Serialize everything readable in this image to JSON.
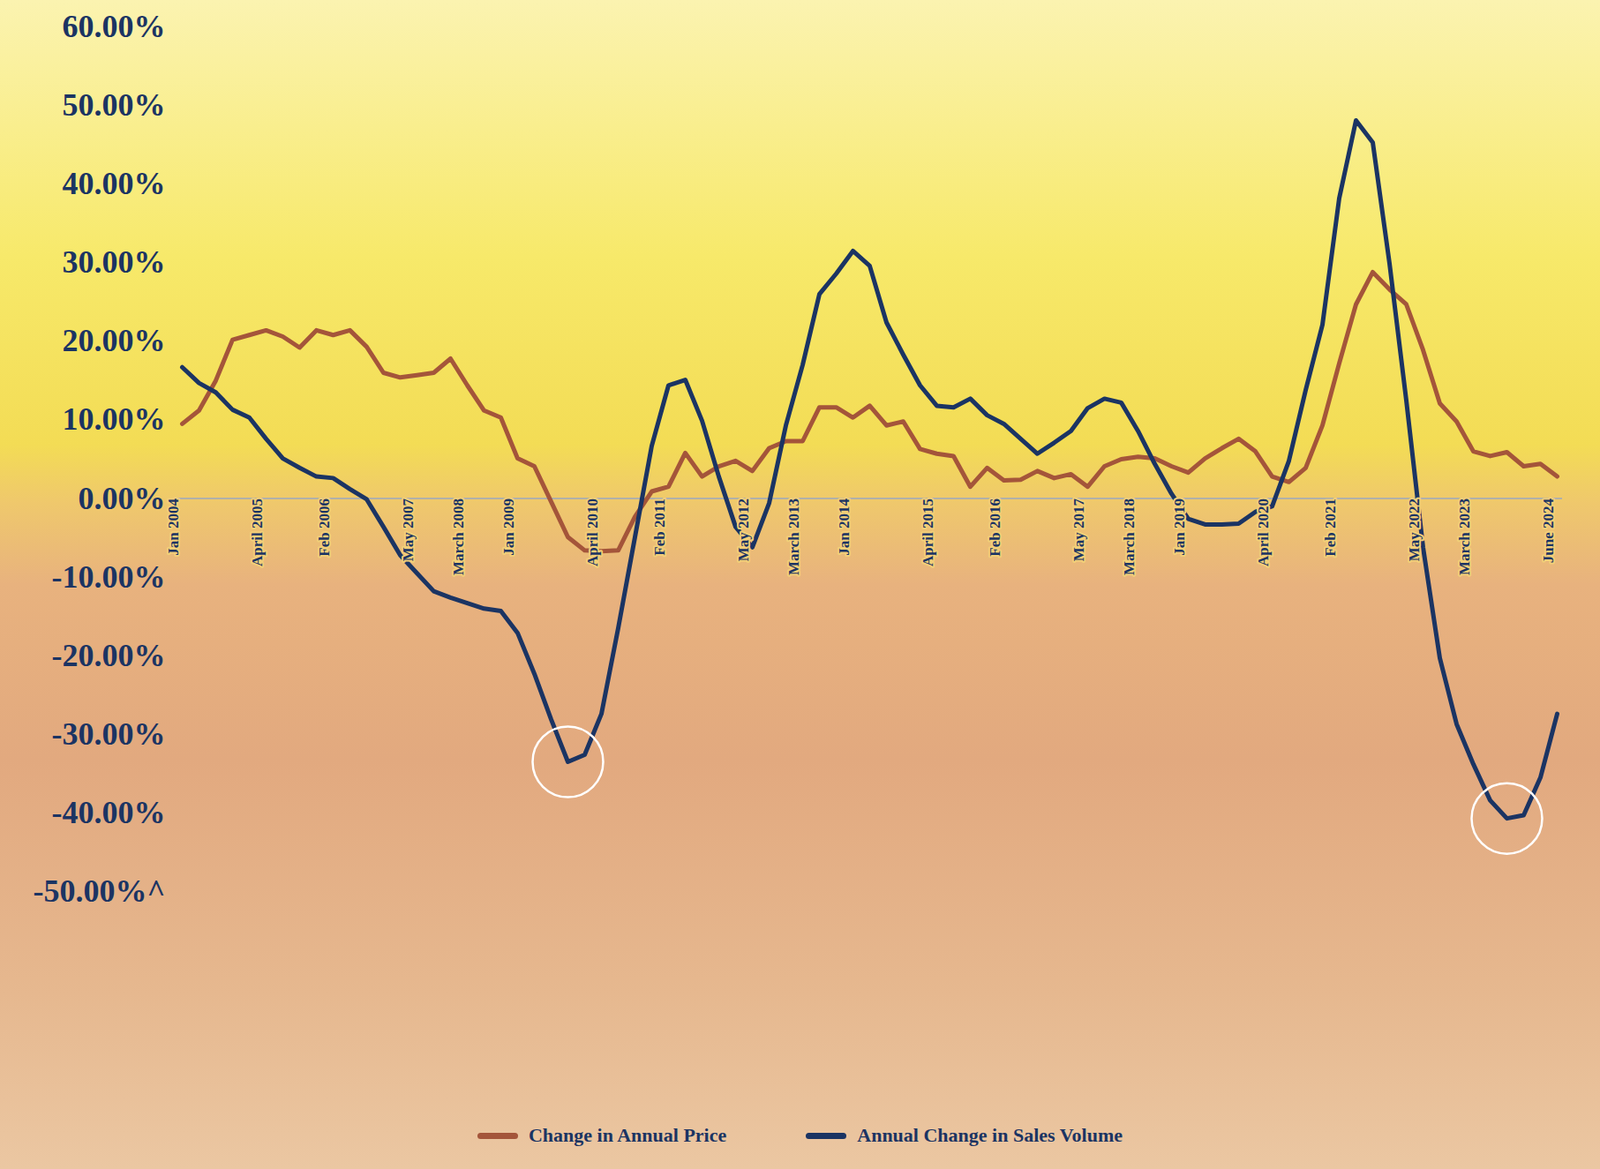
{
  "chart_data": {
    "type": "line",
    "categories": [
      "Jan 2004",
      null,
      null,
      null,
      null,
      "April 2005",
      null,
      null,
      null,
      "Feb 2006",
      null,
      null,
      null,
      null,
      "May 2007",
      null,
      null,
      "March 2008",
      null,
      null,
      "Jan 2009",
      null,
      null,
      null,
      null,
      "April 2010",
      null,
      null,
      null,
      "Feb 2011",
      null,
      null,
      null,
      null,
      "May 2012",
      null,
      null,
      "March 2013",
      null,
      null,
      "Jan 2014",
      null,
      null,
      null,
      null,
      "April 2015",
      null,
      null,
      null,
      "Feb 2016",
      null,
      null,
      null,
      null,
      "May 2017",
      null,
      null,
      "March 2018",
      null,
      null,
      "Jan 2019",
      null,
      null,
      null,
      null,
      "April 2020",
      null,
      null,
      null,
      "Feb 2021",
      null,
      null,
      null,
      null,
      "May 2022",
      null,
      null,
      "March 2023",
      null,
      null,
      null,
      null,
      "June 2024"
    ],
    "series": [
      {
        "name": "Change in Annual Price",
        "color": "#a4553a",
        "values": [
          9.5,
          11.2,
          15,
          20.2,
          20.8,
          21.4,
          20.6,
          19.2,
          21.4,
          20.8,
          21.4,
          19.3,
          16,
          15.4,
          15.7,
          16,
          17.8,
          14.4,
          11.2,
          10.3,
          5.1,
          4.1,
          -0.4,
          -4.9,
          -6.6,
          -6.7,
          -6.6,
          -2.3,
          0.9,
          1.5,
          5.8,
          2.8,
          4.1,
          4.8,
          3.5,
          6.4,
          7.3,
          7.3,
          11.6,
          11.6,
          10.3,
          11.8,
          9.3,
          9.8,
          6.3,
          5.7,
          5.4,
          1.5,
          3.9,
          2.3,
          2.4,
          3.5,
          2.6,
          3.1,
          1.5,
          4.1,
          5.0,
          5.3,
          5.1,
          4.1,
          3.3,
          5.1,
          6.4,
          7.6,
          6.0,
          2.8,
          2.1,
          3.9,
          9.3,
          17.2,
          24.7,
          28.8,
          26.6,
          24.7,
          18.9,
          12.1,
          9.8,
          6.0,
          5.4,
          5.9,
          4.1,
          4.4,
          2.8
        ]
      },
      {
        "name": "Annual Change in Sales Volume",
        "color": "#1b3463",
        "values": [
          16.7,
          14.7,
          13.5,
          11.3,
          10.3,
          7.6,
          5.1,
          3.9,
          2.8,
          2.6,
          1.2,
          -0.1,
          -3.6,
          -7.2,
          -9.5,
          -11.8,
          -12.6,
          -13.3,
          -14.0,
          -14.3,
          -17.1,
          -22.3,
          -28.1,
          -33.5,
          -32.6,
          -27.4,
          -16.5,
          -4.9,
          6.7,
          14.4,
          15.1,
          9.9,
          2.8,
          -3.6,
          -6.2,
          -0.6,
          9.3,
          17,
          26,
          28.6,
          31.5,
          29.6,
          22.4,
          18.3,
          14.4,
          11.8,
          11.6,
          12.7,
          10.6,
          9.5,
          7.6,
          5.7,
          7.1,
          8.6,
          11.5,
          12.7,
          12.2,
          8.6,
          4.4,
          0.6,
          -2.6,
          -3.3,
          -3.3,
          -3.2,
          -1.7,
          -1.0,
          4.8,
          13.8,
          22.1,
          38.2,
          48.1,
          45.3,
          29.9,
          12.5,
          -6.2,
          -20.3,
          -28.7,
          -33.8,
          -38.4,
          -40.7,
          -40.3,
          -35.5,
          -27.4
        ]
      }
    ],
    "ylim": [
      -50,
      60
    ],
    "yticks": [
      {
        "value": -50,
        "label": "-50.00%^"
      },
      {
        "value": -40,
        "label": "-40.00%"
      },
      {
        "value": -30,
        "label": "-30.00%"
      },
      {
        "value": -20,
        "label": "-20.00%"
      },
      {
        "value": -10,
        "label": "-10.00%"
      },
      {
        "value": 0,
        "label": "0.00%"
      },
      {
        "value": 10,
        "label": "10.00%"
      },
      {
        "value": 20,
        "label": "20.00%"
      },
      {
        "value": 30,
        "label": "30.00%"
      },
      {
        "value": 40,
        "label": "40.00%"
      },
      {
        "value": 50,
        "label": "50.00%"
      },
      {
        "value": 60,
        "label": "60.00%"
      }
    ],
    "grid": false,
    "legend": "bottom"
  }
}
